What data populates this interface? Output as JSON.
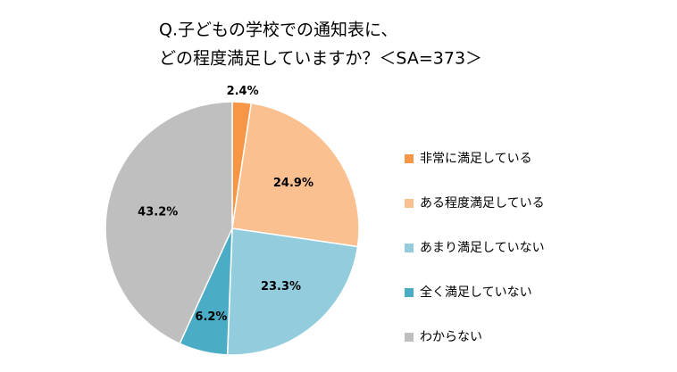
{
  "chart_data": {
    "type": "pie",
    "title": [
      "Q.子どもの学校での通知表に、",
      "どの程度満足していますか？＜SA=373＞"
    ],
    "categories": [
      "非常に満足している",
      "ある程度満足している",
      "あまり満足していない",
      "全く満足していない",
      "わからない"
    ],
    "values": [
      2.4,
      24.9,
      23.3,
      6.2,
      43.2
    ],
    "value_labels": [
      "2.4%",
      "24.9%",
      "23.3%",
      "6.2%",
      "43.2%"
    ],
    "colors": [
      "#f79646",
      "#fac090",
      "#93cddd",
      "#4bacc6",
      "#bfbfbf"
    ],
    "legend": "right"
  }
}
